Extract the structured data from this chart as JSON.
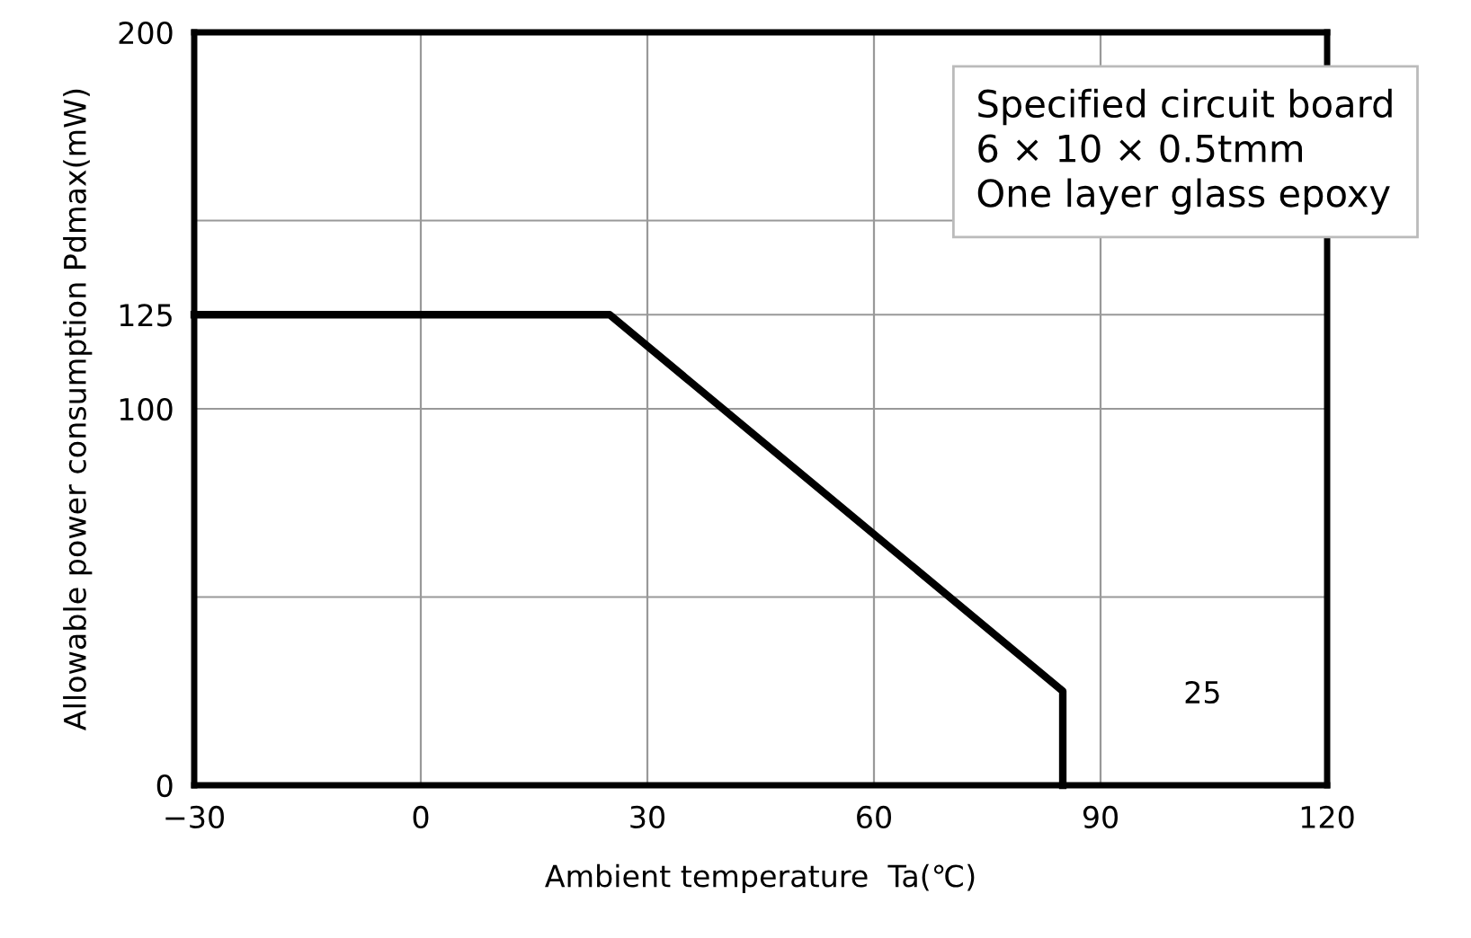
{
  "chart_data": {
    "type": "line",
    "x": [
      -30,
      25,
      85,
      85
    ],
    "series": [
      {
        "color": "#000000",
        "values": [
          125,
          125,
          25,
          0
        ]
      }
    ],
    "xlim": [
      -30,
      120
    ],
    "xticks": [
      {
        "value": -30,
        "label": "−30"
      },
      0,
      30,
      60,
      90,
      120
    ],
    "ylim": [
      0,
      200
    ],
    "yticks": [
      0,
      {
        "value": 50,
        "label": null
      },
      100,
      125,
      {
        "value": 150,
        "label": null
      },
      200
    ],
    "xlabel": "Ambient temperature  Ta(℃)",
    "ylabel": "Allowable power consumption Pdmax(mW)",
    "annotations": [
      "25",
      "Specified circuit board\n6 × 10 × 0.5tmm\nOne layer glass epoxy"
    ],
    "grid": true,
    "marker": "none",
    "line_style": "solid"
  }
}
